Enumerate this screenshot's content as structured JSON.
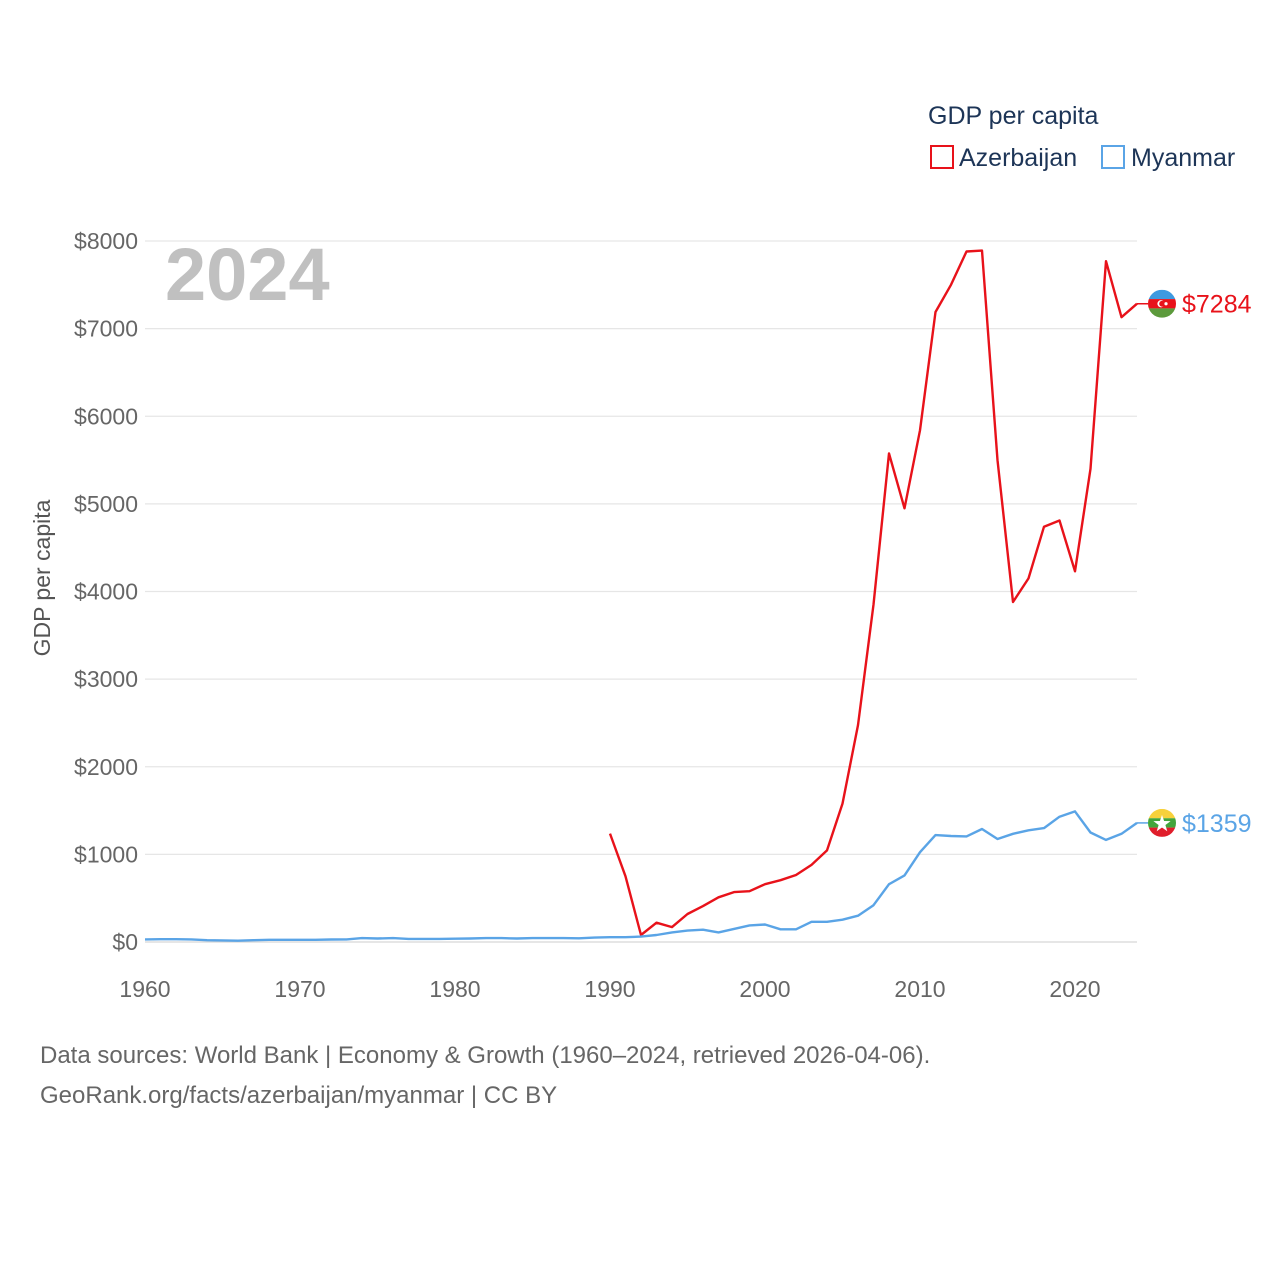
{
  "chart_data": {
    "type": "line",
    "year_label": "2024",
    "ylabel": "GDP per capita",
    "xlim": [
      1960,
      2024
    ],
    "ylim": [
      0,
      8000
    ],
    "y_ticks": [
      {
        "value": 0,
        "label": "$0"
      },
      {
        "value": 1000,
        "label": "$1000"
      },
      {
        "value": 2000,
        "label": "$2000"
      },
      {
        "value": 3000,
        "label": "$3000"
      },
      {
        "value": 4000,
        "label": "$4000"
      },
      {
        "value": 5000,
        "label": "$5000"
      },
      {
        "value": 6000,
        "label": "$6000"
      },
      {
        "value": 7000,
        "label": "$7000"
      },
      {
        "value": 8000,
        "label": "$8000"
      }
    ],
    "x_ticks": [
      {
        "value": 1960,
        "label": "1960"
      },
      {
        "value": 1970,
        "label": "1970"
      },
      {
        "value": 1980,
        "label": "1980"
      },
      {
        "value": 1990,
        "label": "1990"
      },
      {
        "value": 2000,
        "label": "2000"
      },
      {
        "value": 2010,
        "label": "2010"
      },
      {
        "value": 2020,
        "label": "2020"
      }
    ],
    "legend": {
      "title": "GDP per capita",
      "position": "top-right"
    },
    "series": [
      {
        "name": "Azerbaijan",
        "color": "#e8121a",
        "end_label": "$7284",
        "flag": "azerbaijan-flag",
        "x": [
          1990,
          1991,
          1992,
          1993,
          1994,
          1995,
          1996,
          1997,
          1998,
          1999,
          2000,
          2001,
          2002,
          2003,
          2004,
          2005,
          2006,
          2007,
          2008,
          2009,
          2010,
          2011,
          2012,
          2013,
          2014,
          2015,
          2016,
          2017,
          2018,
          2019,
          2020,
          2021,
          2022,
          2023,
          2024
        ],
        "values": [
          1237,
          750,
          80,
          220,
          170,
          320,
          410,
          510,
          570,
          580,
          660,
          705,
          765,
          880,
          1045,
          1580,
          2475,
          3850,
          5575,
          4950,
          5840,
          7190,
          7500,
          7880,
          7890,
          5500,
          3880,
          4150,
          4740,
          4810,
          4230,
          5400,
          7770,
          7130,
          7284
        ]
      },
      {
        "name": "Myanmar",
        "color": "#5aa4e6",
        "end_label": "$1359",
        "flag": "myanmar-flag",
        "x": [
          1960,
          1961,
          1962,
          1963,
          1964,
          1965,
          1966,
          1967,
          1968,
          1969,
          1970,
          1971,
          1972,
          1973,
          1974,
          1975,
          1976,
          1977,
          1978,
          1979,
          1980,
          1981,
          1982,
          1983,
          1984,
          1985,
          1986,
          1987,
          1988,
          1989,
          1990,
          1991,
          1992,
          1993,
          1994,
          1995,
          1996,
          1997,
          1998,
          1999,
          2000,
          2001,
          2002,
          2003,
          2004,
          2005,
          2006,
          2007,
          2008,
          2009,
          2010,
          2011,
          2012,
          2013,
          2014,
          2015,
          2016,
          2017,
          2018,
          2019,
          2020,
          2021,
          2022,
          2023,
          2024
        ],
        "values": [
          30,
          32,
          32,
          30,
          20,
          18,
          15,
          20,
          25,
          25,
          25,
          25,
          28,
          30,
          45,
          40,
          45,
          35,
          35,
          35,
          38,
          40,
          45,
          45,
          40,
          45,
          45,
          45,
          42,
          50,
          55,
          55,
          62,
          80,
          110,
          130,
          140,
          110,
          150,
          190,
          200,
          145,
          145,
          230,
          230,
          255,
          300,
          420,
          660,
          760,
          1025,
          1220,
          1210,
          1205,
          1290,
          1175,
          1235,
          1275,
          1300,
          1430,
          1490,
          1250,
          1165,
          1235,
          1359
        ]
      }
    ]
  },
  "footer": {
    "line1": "Data sources: World Bank | Economy & Growth (1960–2024, retrieved 2026-04-06).",
    "line2": "GeoRank.org/facts/azerbaijan/myanmar | CC BY"
  }
}
